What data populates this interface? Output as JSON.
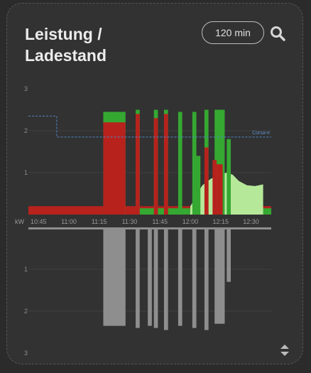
{
  "card": {
    "title_line1": "Leistung /",
    "title_line2": "Ladestand",
    "range_label": "120 min",
    "search_icon": "search-icon",
    "sort_icon": "sort-updown-icon"
  },
  "chart_data": {
    "type": "area",
    "unit_label": "kW",
    "xticks": [
      "10:45",
      "11:00",
      "11:15",
      "11:30",
      "11:45",
      "12:00",
      "12:15",
      "12:30"
    ],
    "upper_yticks": [
      "3",
      "2",
      "1"
    ],
    "lower_yticks": [
      "1",
      "2",
      "3"
    ],
    "upper_ylim": [
      0,
      3
    ],
    "lower_ylim": [
      0,
      3
    ],
    "reference_line": {
      "label": "Corsa-e",
      "points": [
        [
          "10:40",
          2.35
        ],
        [
          "10:54",
          2.35
        ],
        [
          "10:54",
          1.85
        ],
        [
          "12:40",
          1.85
        ]
      ]
    },
    "colors": {
      "grid_green": "#35a832",
      "charging_red": "#b7221d",
      "battery_lightgreen": "#b6e89a",
      "consumption_grey": "#8e8e8e",
      "reference_blue": "#4f86c6"
    },
    "consumption_blocks": [
      {
        "start": "11:17",
        "end": "11:28",
        "value": 2.35
      },
      {
        "start": "11:33",
        "end": "11:35",
        "value": 2.4
      },
      {
        "start": "11:39",
        "end": "11:41",
        "value": 2.35
      },
      {
        "start": "11:42",
        "end": "11:44",
        "value": 2.4
      },
      {
        "start": "11:47",
        "end": "11:49",
        "value": 2.45
      },
      {
        "start": "11:54",
        "end": "11:56",
        "value": 2.35
      },
      {
        "start": "12:01",
        "end": "12:03",
        "value": 2.4
      },
      {
        "start": "12:07",
        "end": "12:09",
        "value": 2.45
      },
      {
        "start": "12:12",
        "end": "12:17",
        "value": 2.3
      },
      {
        "start": "12:18",
        "end": "12:20",
        "value": 1.3
      }
    ],
    "red_blocks": [
      {
        "start": "11:17",
        "end": "11:28",
        "value": 2.2
      },
      {
        "start": "11:33",
        "end": "11:35",
        "value": 2.4
      },
      {
        "start": "11:42",
        "end": "11:44",
        "value": 2.3
      },
      {
        "start": "11:47",
        "end": "11:49",
        "value": 2.4
      },
      {
        "start": "12:07",
        "end": "12:09",
        "value": 1.6
      },
      {
        "start": "12:11",
        "end": "12:13",
        "value": 1.3
      },
      {
        "start": "12:13",
        "end": "12:16",
        "value": 1.2
      }
    ],
    "green_blocks": [
      {
        "start": "11:17",
        "end": "11:28",
        "value": 2.45
      },
      {
        "start": "11:33",
        "end": "11:35",
        "value": 2.5
      },
      {
        "start": "11:42",
        "end": "11:44",
        "value": 2.5
      },
      {
        "start": "11:47",
        "end": "11:49",
        "value": 2.5
      },
      {
        "start": "11:54",
        "end": "11:56",
        "value": 2.45
      },
      {
        "start": "12:01",
        "end": "12:03",
        "value": 2.45
      },
      {
        "start": "12:03",
        "end": "12:05",
        "value": 1.4
      },
      {
        "start": "12:07",
        "end": "12:09",
        "value": 2.5
      },
      {
        "start": "12:12",
        "end": "12:17",
        "value": 2.5
      },
      {
        "start": "12:18",
        "end": "12:20",
        "value": 1.8
      }
    ],
    "battery_area": [
      [
        "12:00",
        0.2
      ],
      [
        "12:02",
        0.35
      ],
      [
        "12:04",
        0.55
      ],
      [
        "12:06",
        0.7
      ],
      [
        "12:10",
        0.85
      ],
      [
        "12:14",
        0.95
      ],
      [
        "12:18",
        1.0
      ],
      [
        "12:21",
        0.95
      ],
      [
        "12:24",
        0.8
      ],
      [
        "12:28",
        0.7
      ],
      [
        "12:32",
        0.68
      ],
      [
        "12:36",
        0.72
      ]
    ],
    "base_load": 0.2
  }
}
